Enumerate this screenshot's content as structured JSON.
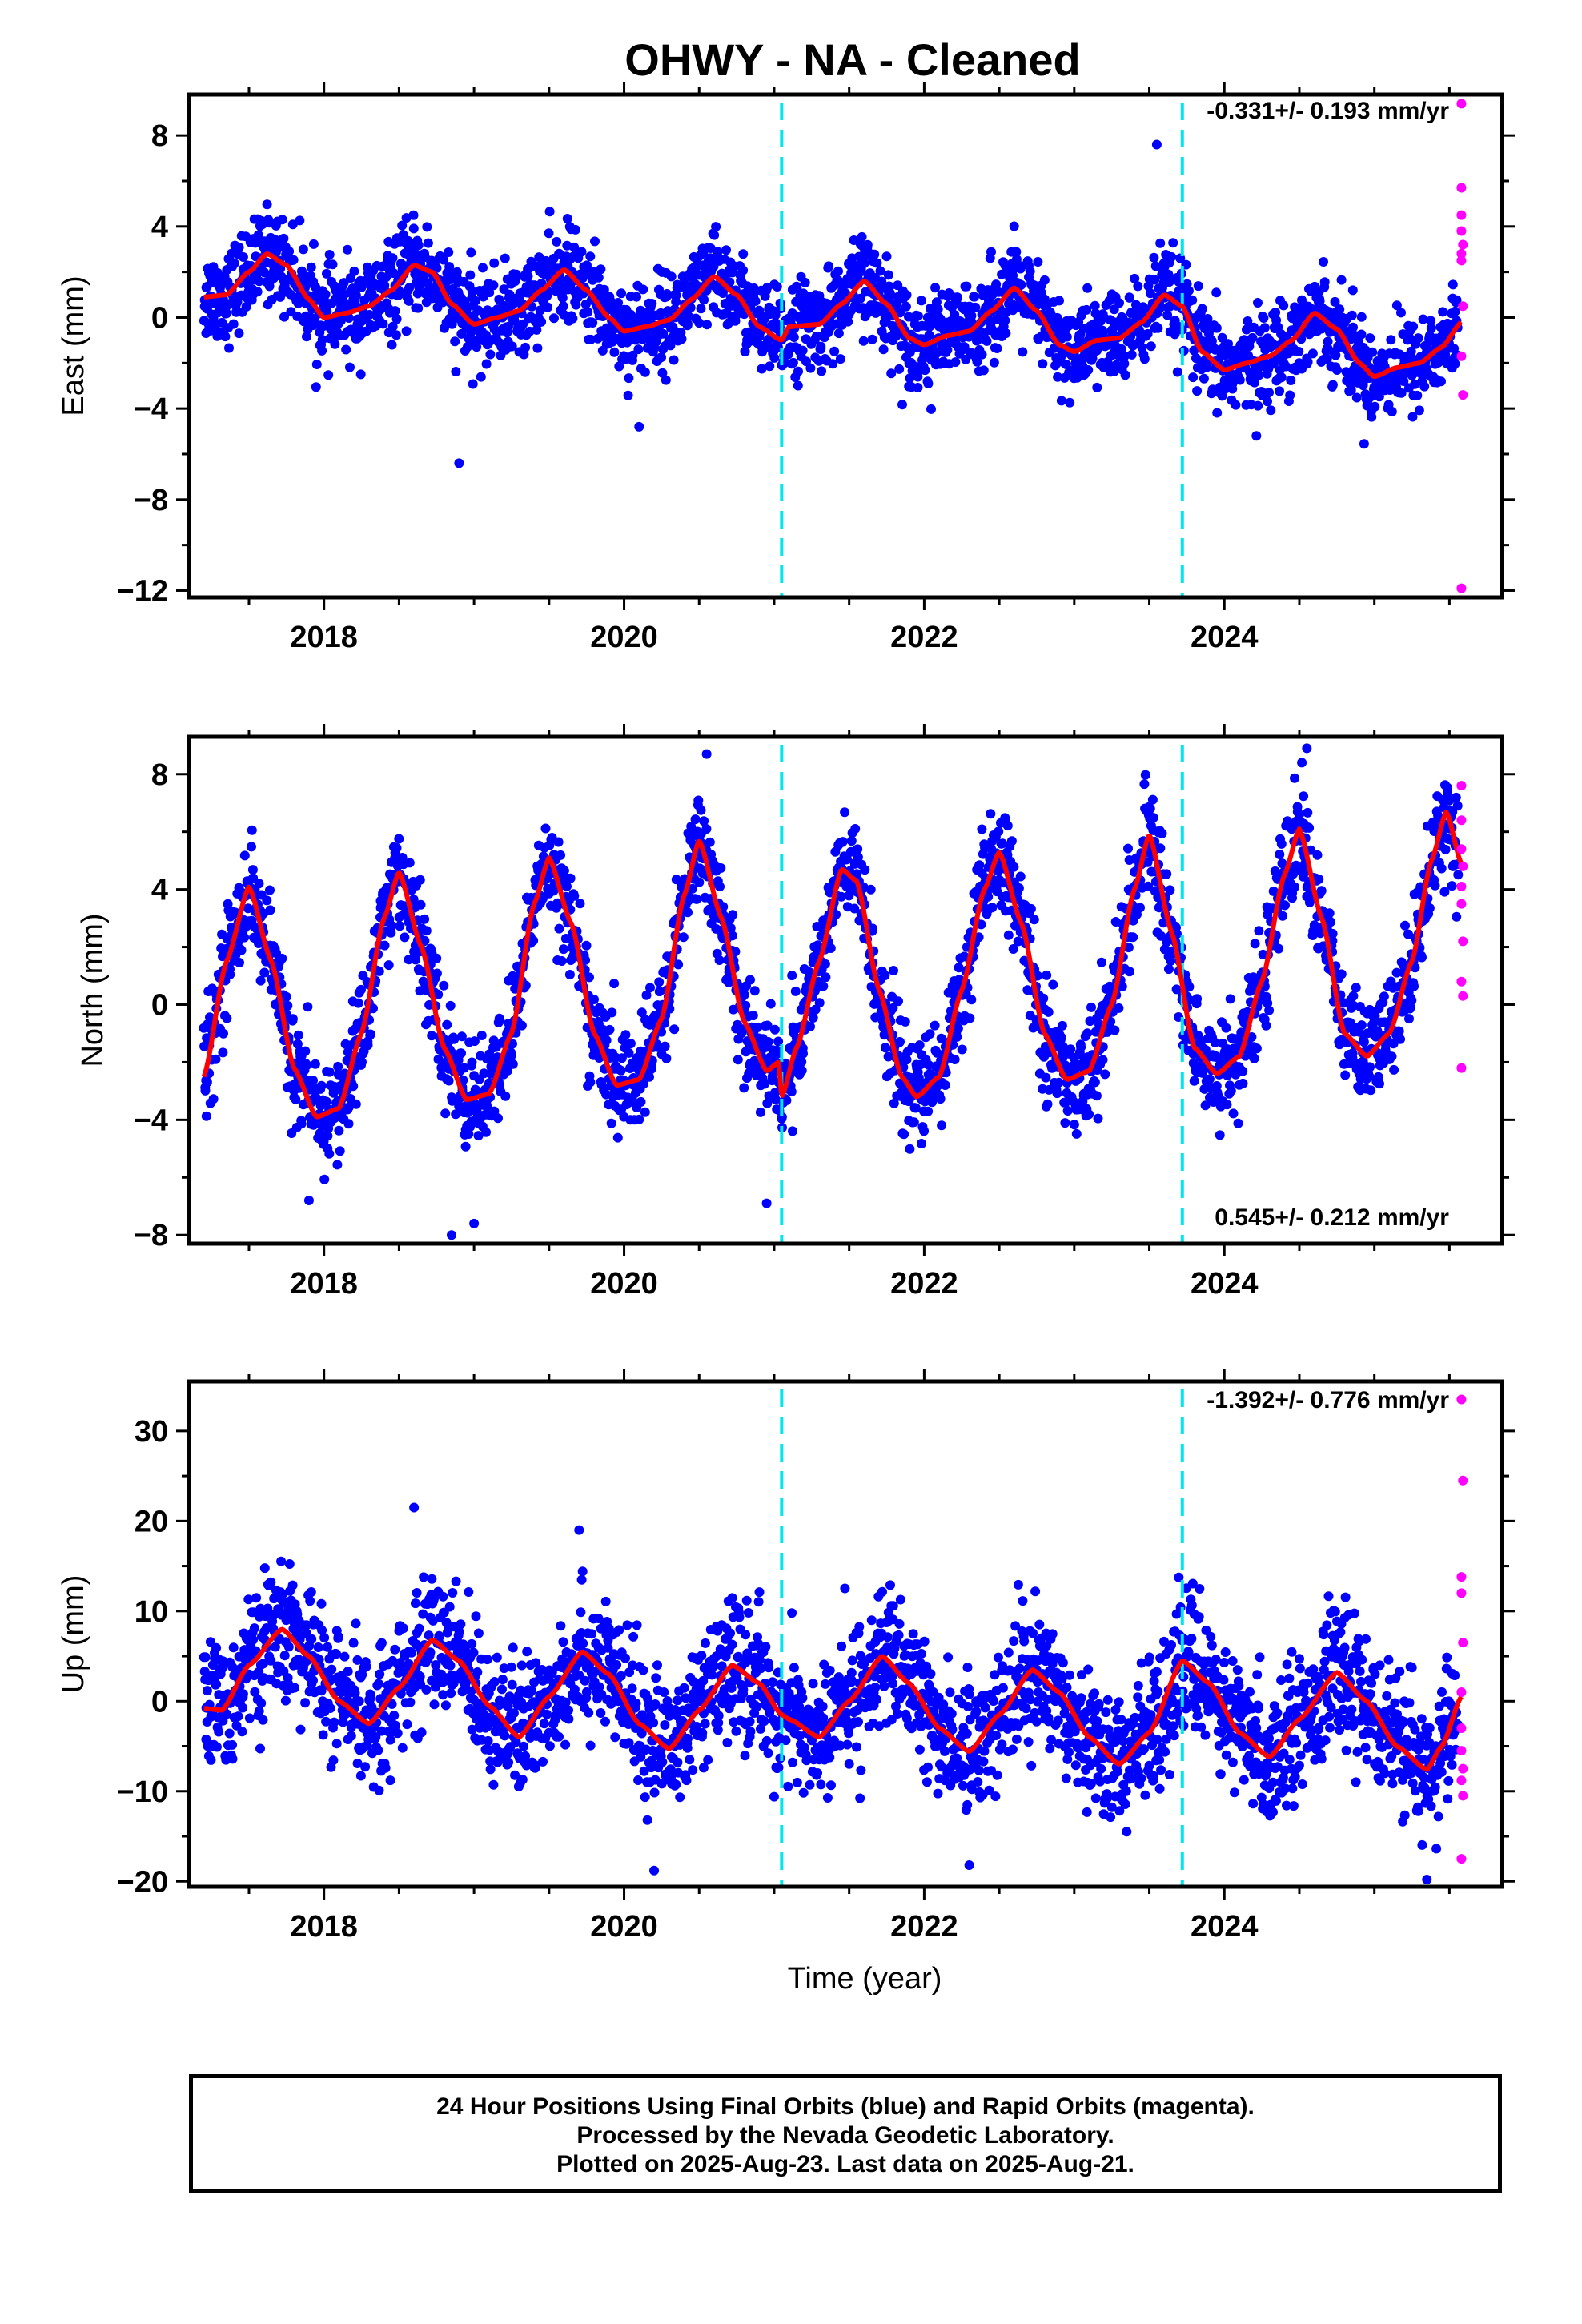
{
  "title": "OHWY  - NA - Cleaned",
  "x_axis_title": "Time (year)",
  "footer": {
    "line1": "24 Hour Positions Using Final Orbits (blue) and Rapid Orbits (magenta).",
    "line2": "Processed by the Nevada Geodetic Laboratory.",
    "line3": "Plotted on 2025-Aug-23. Last data on 2025-Aug-21."
  },
  "colors": {
    "final_orbits": "#0000ff",
    "rapid_orbits": "#ff00ff",
    "model": "#ff0000",
    "steps": "#00e5ee"
  },
  "chart_data": [
    {
      "type": "scatter",
      "component": "east",
      "ylabel": "East (mm)",
      "rate_label": "-0.331+/- 0.193 mm/yr",
      "xlim": [
        2017.1,
        2025.85
      ],
      "ylim": [
        -12.3,
        9.8
      ],
      "yticks": [
        8,
        4,
        0,
        -4,
        -8,
        -12
      ],
      "xticks": [
        2018,
        2020,
        2022,
        2024
      ],
      "step_lines": [
        2021.05,
        2023.72
      ],
      "model": [
        [
          2017.2,
          0.9
        ],
        [
          2017.35,
          1.0
        ],
        [
          2017.5,
          2.0
        ],
        [
          2017.62,
          2.8
        ],
        [
          2017.75,
          2.3
        ],
        [
          2017.9,
          0.8
        ],
        [
          2018.0,
          0.0
        ],
        [
          2018.15,
          0.2
        ],
        [
          2018.3,
          0.5
        ],
        [
          2018.45,
          1.2
        ],
        [
          2018.6,
          2.3
        ],
        [
          2018.72,
          2.0
        ],
        [
          2018.85,
          0.6
        ],
        [
          2019.0,
          -0.3
        ],
        [
          2019.15,
          0.0
        ],
        [
          2019.3,
          0.3
        ],
        [
          2019.45,
          1.2
        ],
        [
          2019.6,
          2.1
        ],
        [
          2019.75,
          1.2
        ],
        [
          2019.9,
          0.0
        ],
        [
          2020.0,
          -0.6
        ],
        [
          2020.15,
          -0.4
        ],
        [
          2020.3,
          -0.1
        ],
        [
          2020.45,
          0.8
        ],
        [
          2020.6,
          1.8
        ],
        [
          2020.75,
          1.0
        ],
        [
          2020.9,
          -0.4
        ],
        [
          2021.05,
          -1.0
        ],
        [
          2021.1,
          -0.4
        ],
        [
          2021.3,
          -0.3
        ],
        [
          2021.45,
          0.6
        ],
        [
          2021.6,
          1.6
        ],
        [
          2021.75,
          0.6
        ],
        [
          2021.9,
          -0.9
        ],
        [
          2022.0,
          -1.2
        ],
        [
          2022.15,
          -0.8
        ],
        [
          2022.3,
          -0.6
        ],
        [
          2022.45,
          0.3
        ],
        [
          2022.6,
          1.3
        ],
        [
          2022.75,
          0.3
        ],
        [
          2022.9,
          -1.2
        ],
        [
          2023.0,
          -1.5
        ],
        [
          2023.15,
          -1.0
        ],
        [
          2023.3,
          -0.9
        ],
        [
          2023.45,
          -0.2
        ],
        [
          2023.6,
          1.0
        ],
        [
          2023.72,
          0.5
        ],
        [
          2023.85,
          -1.5
        ],
        [
          2024.0,
          -2.3
        ],
        [
          2024.15,
          -2.0
        ],
        [
          2024.3,
          -1.7
        ],
        [
          2024.45,
          -1.0
        ],
        [
          2024.6,
          0.2
        ],
        [
          2024.75,
          -0.5
        ],
        [
          2024.9,
          -2.0
        ],
        [
          2025.0,
          -2.6
        ],
        [
          2025.15,
          -2.2
        ],
        [
          2025.3,
          -2.0
        ],
        [
          2025.45,
          -1.3
        ],
        [
          2025.58,
          -0.2
        ]
      ],
      "noise_sigma": 1.0,
      "rapid_points": [
        [
          2025.58,
          9.4
        ],
        [
          2025.58,
          5.7
        ],
        [
          2025.58,
          4.5
        ],
        [
          2025.58,
          3.8
        ],
        [
          2025.59,
          3.2
        ],
        [
          2025.58,
          2.8
        ],
        [
          2025.58,
          2.5
        ],
        [
          2025.59,
          0.5
        ],
        [
          2025.58,
          -1.7
        ],
        [
          2025.59,
          -3.4
        ],
        [
          2025.58,
          -11.9
        ]
      ],
      "outliers": [
        [
          2018.9,
          -6.4
        ],
        [
          2020.1,
          -4.8
        ],
        [
          2023.55,
          7.6
        ]
      ]
    },
    {
      "type": "scatter",
      "component": "north",
      "ylabel": "North (mm)",
      "rate_label": "0.545+/- 0.212 mm/yr",
      "xlim": [
        2017.1,
        2025.85
      ],
      "ylim": [
        -8.3,
        9.3
      ],
      "yticks": [
        8,
        4,
        0,
        -4,
        -8
      ],
      "xticks": [
        2018,
        2020,
        2022,
        2024
      ],
      "step_lines": [
        2021.05,
        2023.72
      ],
      "model": [
        [
          2017.2,
          -2.5
        ],
        [
          2017.35,
          1.5
        ],
        [
          2017.5,
          4.1
        ],
        [
          2017.65,
          1.5
        ],
        [
          2017.8,
          -2.2
        ],
        [
          2017.95,
          -3.9
        ],
        [
          2018.1,
          -3.6
        ],
        [
          2018.25,
          -1.0
        ],
        [
          2018.4,
          3.0
        ],
        [
          2018.5,
          4.6
        ],
        [
          2018.65,
          2.0
        ],
        [
          2018.8,
          -1.5
        ],
        [
          2018.95,
          -3.3
        ],
        [
          2019.1,
          -3.1
        ],
        [
          2019.25,
          -1.0
        ],
        [
          2019.4,
          3.5
        ],
        [
          2019.5,
          5.1
        ],
        [
          2019.65,
          2.8
        ],
        [
          2019.8,
          -1.0
        ],
        [
          2019.95,
          -2.8
        ],
        [
          2020.1,
          -2.6
        ],
        [
          2020.25,
          -0.5
        ],
        [
          2020.4,
          3.8
        ],
        [
          2020.5,
          5.7
        ],
        [
          2020.65,
          3.0
        ],
        [
          2020.8,
          -0.6
        ],
        [
          2020.95,
          -2.3
        ],
        [
          2021.03,
          -2.0
        ],
        [
          2021.05,
          -3.2
        ],
        [
          2021.15,
          -1.5
        ],
        [
          2021.3,
          1.5
        ],
        [
          2021.45,
          4.7
        ],
        [
          2021.55,
          4.3
        ],
        [
          2021.7,
          0.5
        ],
        [
          2021.85,
          -2.5
        ],
        [
          2021.95,
          -3.2
        ],
        [
          2022.1,
          -2.5
        ],
        [
          2022.25,
          0.5
        ],
        [
          2022.4,
          4.0
        ],
        [
          2022.5,
          5.3
        ],
        [
          2022.65,
          2.8
        ],
        [
          2022.8,
          -1.0
        ],
        [
          2022.95,
          -2.6
        ],
        [
          2023.1,
          -2.3
        ],
        [
          2023.25,
          0.0
        ],
        [
          2023.4,
          4.0
        ],
        [
          2023.5,
          5.9
        ],
        [
          2023.65,
          2.5
        ],
        [
          2023.8,
          -1.5
        ],
        [
          2023.95,
          -2.4
        ],
        [
          2024.1,
          -1.8
        ],
        [
          2024.25,
          0.8
        ],
        [
          2024.4,
          4.5
        ],
        [
          2024.5,
          6.1
        ],
        [
          2024.65,
          3.0
        ],
        [
          2024.8,
          -1.0
        ],
        [
          2024.95,
          -1.8
        ],
        [
          2025.1,
          -1.0
        ],
        [
          2025.25,
          1.5
        ],
        [
          2025.38,
          5.0
        ],
        [
          2025.48,
          6.7
        ],
        [
          2025.58,
          4.9
        ]
      ],
      "noise_sigma": 0.9,
      "rapid_points": [
        [
          2025.58,
          7.6
        ],
        [
          2025.58,
          6.4
        ],
        [
          2025.58,
          5.4
        ],
        [
          2025.59,
          4.8
        ],
        [
          2025.58,
          4.1
        ],
        [
          2025.58,
          3.5
        ],
        [
          2025.59,
          2.2
        ],
        [
          2025.58,
          0.8
        ],
        [
          2025.59,
          0.3
        ],
        [
          2025.58,
          -2.2
        ]
      ],
      "outliers": [
        [
          2017.9,
          -6.8
        ],
        [
          2018.85,
          -8.0
        ],
        [
          2019.0,
          -7.6
        ],
        [
          2020.95,
          -6.9
        ],
        [
          2020.55,
          8.7
        ],
        [
          2024.55,
          8.9
        ]
      ]
    },
    {
      "type": "scatter",
      "component": "up",
      "ylabel": "Up (mm)",
      "rate_label": "-1.392+/- 0.776 mm/yr",
      "xlim": [
        2017.1,
        2025.85
      ],
      "ylim": [
        -20.6,
        35.5
      ],
      "yticks": [
        30,
        20,
        10,
        0,
        -10,
        -20
      ],
      "xticks": [
        2018,
        2020,
        2022,
        2024
      ],
      "step_lines": [
        2021.05,
        2023.72
      ],
      "model": [
        [
          2017.2,
          -0.8
        ],
        [
          2017.32,
          -1.0
        ],
        [
          2017.5,
          4.0
        ],
        [
          2017.72,
          8.0
        ],
        [
          2017.9,
          5.0
        ],
        [
          2018.1,
          0.0
        ],
        [
          2018.3,
          -2.5
        ],
        [
          2018.5,
          1.5
        ],
        [
          2018.72,
          6.8
        ],
        [
          2018.9,
          4.5
        ],
        [
          2019.1,
          -0.5
        ],
        [
          2019.3,
          -4.0
        ],
        [
          2019.5,
          0.5
        ],
        [
          2019.72,
          5.5
        ],
        [
          2019.9,
          3.0
        ],
        [
          2020.1,
          -2.5
        ],
        [
          2020.3,
          -5.3
        ],
        [
          2020.5,
          -1.0
        ],
        [
          2020.72,
          4.0
        ],
        [
          2020.9,
          2.0
        ],
        [
          2021.05,
          -1.5
        ],
        [
          2021.1,
          -2.0
        ],
        [
          2021.3,
          -4.0
        ],
        [
          2021.5,
          0.0
        ],
        [
          2021.72,
          5.0
        ],
        [
          2021.9,
          2.0
        ],
        [
          2022.1,
          -3.0
        ],
        [
          2022.3,
          -5.6
        ],
        [
          2022.5,
          -1.5
        ],
        [
          2022.72,
          3.5
        ],
        [
          2022.9,
          1.0
        ],
        [
          2023.1,
          -4.0
        ],
        [
          2023.3,
          -7.0
        ],
        [
          2023.5,
          -3.5
        ],
        [
          2023.72,
          4.5
        ],
        [
          2023.9,
          2.0
        ],
        [
          2024.1,
          -3.5
        ],
        [
          2024.3,
          -6.2
        ],
        [
          2024.5,
          -2.0
        ],
        [
          2024.75,
          3.2
        ],
        [
          2024.95,
          0.0
        ],
        [
          2025.15,
          -5.0
        ],
        [
          2025.35,
          -7.6
        ],
        [
          2025.45,
          -5.0
        ],
        [
          2025.58,
          0.5
        ]
      ],
      "noise_sigma": 3.6,
      "rapid_points": [
        [
          2025.58,
          33.5
        ],
        [
          2025.59,
          24.5
        ],
        [
          2025.58,
          13.8
        ],
        [
          2025.58,
          12.0
        ],
        [
          2025.59,
          6.5
        ],
        [
          2025.58,
          1.0
        ],
        [
          2025.58,
          -3.0
        ],
        [
          2025.58,
          -5.5
        ],
        [
          2025.59,
          -7.5
        ],
        [
          2025.58,
          -8.8
        ],
        [
          2025.59,
          -10.5
        ],
        [
          2025.58,
          -17.5
        ]
      ],
      "outliers": [
        [
          2018.6,
          21.5
        ],
        [
          2020.2,
          -18.8
        ],
        [
          2022.3,
          -18.2
        ],
        [
          2025.35,
          -19.8
        ],
        [
          2019.7,
          19.0
        ]
      ]
    }
  ]
}
